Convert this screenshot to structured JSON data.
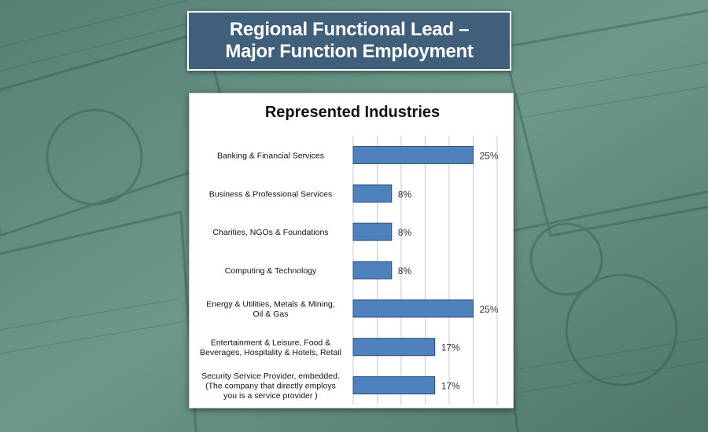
{
  "header": {
    "title_line1": "Regional Functional Lead –",
    "title_line2": "Major Function Employment"
  },
  "colors": {
    "title_bg": "#3f5f7a",
    "bar_fill": "#4f81bd",
    "bar_stroke": "#2c4e7a",
    "background_tint": "#6f9a8e"
  },
  "chart_data": {
    "type": "bar",
    "orientation": "horizontal",
    "title": "Represented Industries",
    "categories": [
      [
        "Banking & Financial Services"
      ],
      [
        "Business & Professional Services"
      ],
      [
        "Charities, NGOs & Foundations"
      ],
      [
        "Computing & Technology"
      ],
      [
        "Energy & Utilities,  Metals & Mining,",
        "Oil & Gas"
      ],
      [
        "Entertainment & Leisure, Food &",
        "Beverages, Hospitality & Hotels, Retail"
      ],
      [
        "Security Service Provider, embedded.",
        "(The company that directly employs",
        "you is a service provider )"
      ]
    ],
    "values": [
      25,
      8,
      8,
      8,
      25,
      17,
      17
    ],
    "value_labels": [
      "25%",
      "8%",
      "8%",
      "8%",
      "25%",
      "17%",
      "17%"
    ],
    "xlim": [
      0,
      30
    ],
    "grid": true,
    "xlabel": "",
    "ylabel": ""
  }
}
